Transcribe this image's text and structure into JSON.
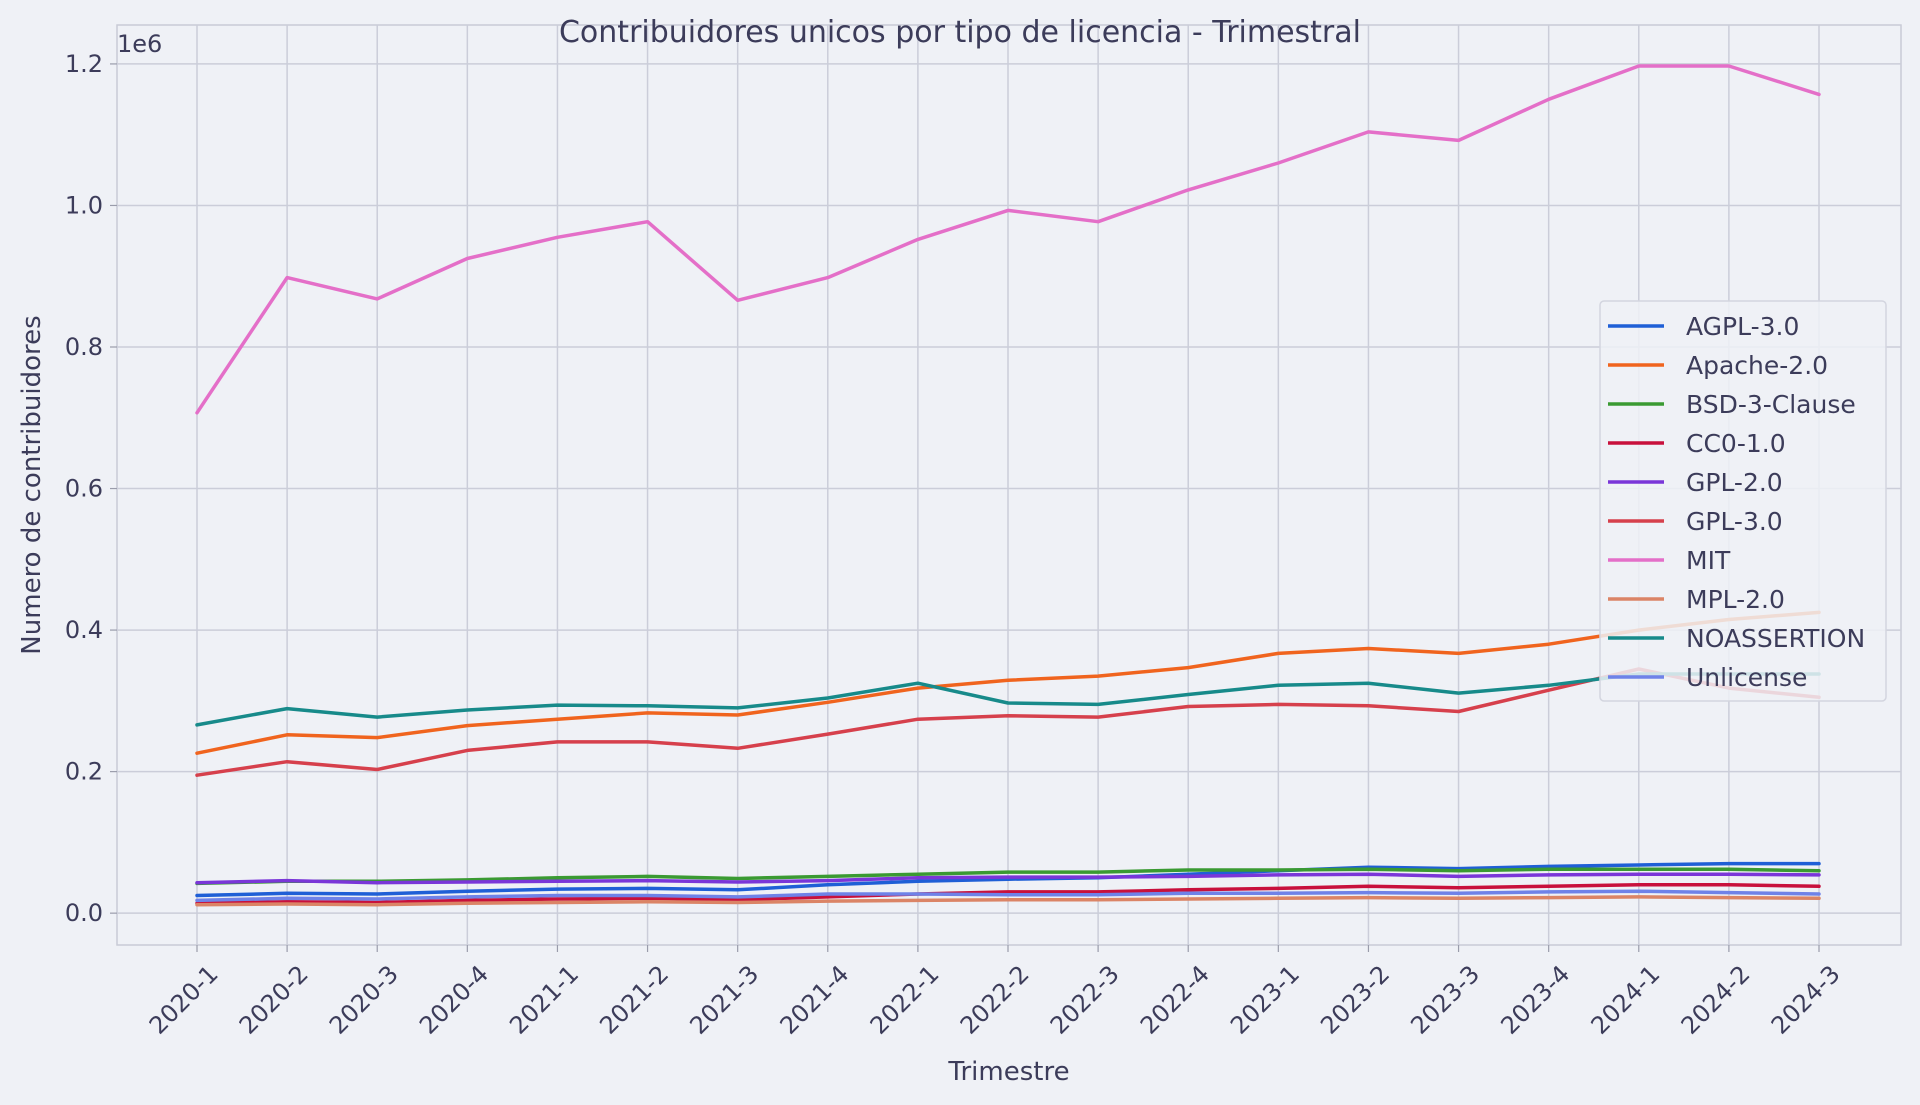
{
  "chart_data": {
    "type": "line",
    "title": "Contribuidores unicos por tipo de licencia - Trimestral",
    "xlabel": "Trimestre",
    "ylabel": "Numero de contribuidores",
    "y_offset_label": "1e6",
    "ylim": [
      -45000,
      1255000
    ],
    "yticks": [
      0,
      200000,
      400000,
      600000,
      800000,
      1000000,
      1200000
    ],
    "ytick_labels": [
      "0.0",
      "0.2",
      "0.4",
      "0.6",
      "0.8",
      "1.0",
      "1.2"
    ],
    "grid": true,
    "legend_position": "right",
    "categories": [
      "2020-1",
      "2020-2",
      "2020-3",
      "2020-4",
      "2021-1",
      "2021-2",
      "2021-3",
      "2021-4",
      "2022-1",
      "2022-2",
      "2022-3",
      "2022-4",
      "2023-1",
      "2023-2",
      "2023-3",
      "2023-4",
      "2024-1",
      "2024-2",
      "2024-3"
    ],
    "series": [
      {
        "name": "AGPL-3.0",
        "color": "#1f5fd6",
        "values": [
          25000,
          28000,
          27000,
          31000,
          34000,
          35000,
          33000,
          40000,
          45000,
          48000,
          50000,
          55000,
          60000,
          65000,
          63000,
          66000,
          68000,
          70000,
          70000
        ]
      },
      {
        "name": "Apache-2.0",
        "color": "#f0641e",
        "values": [
          226000,
          252000,
          248000,
          265000,
          274000,
          283000,
          280000,
          298000,
          318000,
          329000,
          335000,
          347000,
          367000,
          374000,
          367000,
          380000,
          400000,
          415000,
          425000
        ]
      },
      {
        "name": "BSD-3-Clause",
        "color": "#3a9a32",
        "values": [
          42000,
          45000,
          45000,
          47000,
          50000,
          52000,
          49000,
          52000,
          55000,
          58000,
          58000,
          61000,
          61000,
          62000,
          60000,
          62000,
          62000,
          62000,
          60000
        ]
      },
      {
        "name": "CC0-1.0",
        "color": "#c8103c",
        "values": [
          14000,
          16000,
          15000,
          18000,
          20000,
          21000,
          19000,
          23000,
          27000,
          30000,
          30000,
          33000,
          35000,
          38000,
          36000,
          38000,
          40000,
          40000,
          38000
        ]
      },
      {
        "name": "GPL-2.0",
        "color": "#7a36d8",
        "values": [
          43000,
          46000,
          43000,
          44000,
          45000,
          46000,
          44000,
          46000,
          50000,
          51000,
          51000,
          52000,
          54000,
          55000,
          52000,
          54000,
          55000,
          55000,
          54000
        ]
      },
      {
        "name": "GPL-3.0",
        "color": "#d6404c",
        "values": [
          195000,
          214000,
          203000,
          230000,
          242000,
          242000,
          233000,
          253000,
          274000,
          279000,
          277000,
          292000,
          295000,
          293000,
          285000,
          315000,
          345000,
          318000,
          305000
        ]
      },
      {
        "name": "MIT",
        "color": "#e46fc8",
        "values": [
          707000,
          898000,
          868000,
          925000,
          955000,
          977000,
          866000,
          898000,
          952000,
          993000,
          977000,
          1022000,
          1060000,
          1104000,
          1092000,
          1150000,
          1197000,
          1197000,
          1157000
        ]
      },
      {
        "name": "MPL-2.0",
        "color": "#db8466",
        "values": [
          12000,
          13000,
          12000,
          14000,
          15000,
          16000,
          15000,
          17000,
          18000,
          19000,
          19000,
          20000,
          21000,
          22000,
          21000,
          22000,
          23000,
          22000,
          21000
        ]
      },
      {
        "name": "NOASSERTION",
        "color": "#178a8a",
        "values": [
          266000,
          289000,
          277000,
          287000,
          294000,
          293000,
          290000,
          304000,
          325000,
          297000,
          295000,
          309000,
          322000,
          325000,
          311000,
          322000,
          338000,
          338000,
          338000
        ]
      },
      {
        "name": "Unlicense",
        "color": "#6f82e8",
        "values": [
          18000,
          21000,
          20000,
          23000,
          25000,
          25000,
          23000,
          27000,
          27000,
          26000,
          26000,
          28000,
          28000,
          29000,
          28000,
          30000,
          31000,
          29000,
          27000
        ]
      }
    ]
  }
}
